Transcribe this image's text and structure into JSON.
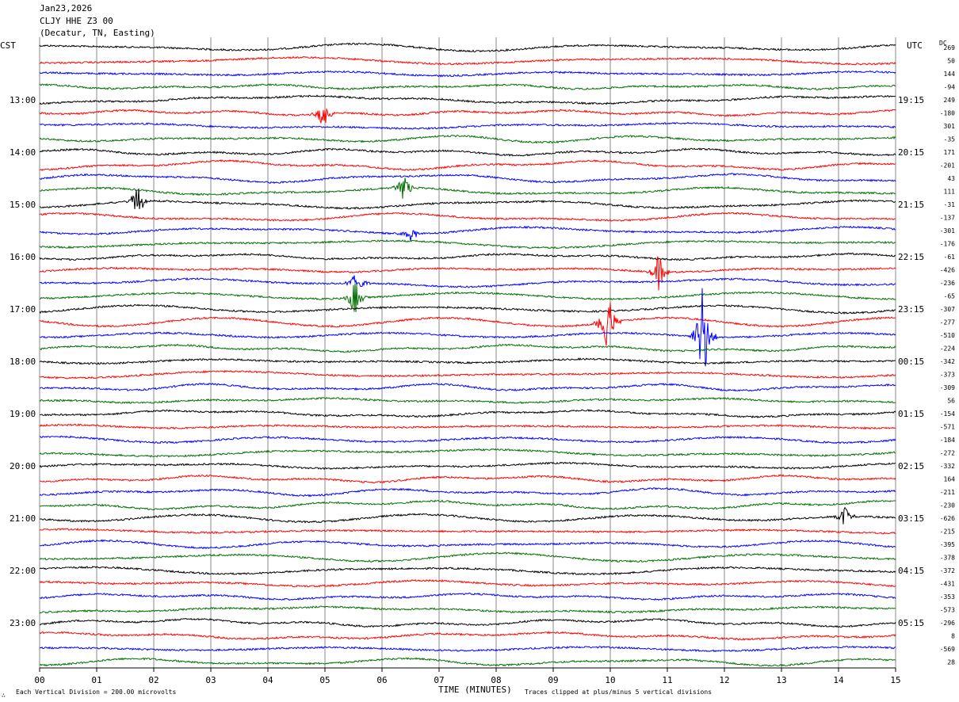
{
  "header": {
    "date": "Jan23,2026",
    "station": "CLJY HHE Z3 00",
    "location": "(Decatur, TN, Easting)"
  },
  "left_tz": "CST",
  "right_tz": "UTC",
  "dc_label": "DC",
  "footer": {
    "scale_note": "Each Vertical Division =  200.00 microvolts",
    "xlabel": "TIME (MINUTES)",
    "clip_note": "Traces clipped at plus/minus 5 vertical divisions",
    "corner_mark": "∴"
  },
  "colors": {
    "black": "#000000",
    "red": "#ff0000",
    "blue": "#0000ff",
    "green": "#007000",
    "grid": "#888888"
  },
  "chart_data": {
    "type": "line",
    "title": "CLJY HHE Z3 00",
    "xlabel": "TIME (MINUTES)",
    "xlim": [
      0,
      15
    ],
    "x_ticks": [
      "00",
      "01",
      "02",
      "03",
      "04",
      "05",
      "06",
      "07",
      "08",
      "09",
      "10",
      "11",
      "12",
      "13",
      "14",
      "15"
    ],
    "trace_color_cycle": [
      "black",
      "red",
      "blue",
      "green"
    ],
    "num_traces": 48,
    "left_time_labels": [
      {
        "trace": 4,
        "label": "13:00"
      },
      {
        "trace": 8,
        "label": "14:00"
      },
      {
        "trace": 12,
        "label": "15:00"
      },
      {
        "trace": 16,
        "label": "16:00"
      },
      {
        "trace": 20,
        "label": "17:00"
      },
      {
        "trace": 24,
        "label": "18:00"
      },
      {
        "trace": 28,
        "label": "19:00"
      },
      {
        "trace": 32,
        "label": "20:00"
      },
      {
        "trace": 36,
        "label": "21:00"
      },
      {
        "trace": 40,
        "label": "22:00"
      },
      {
        "trace": 44,
        "label": "23:00"
      }
    ],
    "right_time_labels": [
      {
        "trace": 4,
        "label": "19:15"
      },
      {
        "trace": 8,
        "label": "20:15"
      },
      {
        "trace": 12,
        "label": "21:15"
      },
      {
        "trace": 16,
        "label": "22:15"
      },
      {
        "trace": 20,
        "label": "23:15"
      },
      {
        "trace": 24,
        "label": "00:15"
      },
      {
        "trace": 28,
        "label": "01:15"
      },
      {
        "trace": 32,
        "label": "02:15"
      },
      {
        "trace": 36,
        "label": "03:15"
      },
      {
        "trace": 40,
        "label": "04:15"
      },
      {
        "trace": 44,
        "label": "05:15"
      }
    ],
    "dc_offsets": [
      "269",
      "50",
      "144",
      "-94",
      "249",
      "-180",
      "301",
      "-35",
      "171",
      "-201",
      "43",
      "111",
      "-31",
      "-137",
      "-301",
      "-176",
      "-61",
      "-426",
      "-236",
      "-65",
      "-307",
      "-277",
      "-510",
      "-224",
      "-342",
      "-373",
      "-309",
      "56",
      "-154",
      "-571",
      "-184",
      "-272",
      "-332",
      "164",
      "-211",
      "-230",
      "-626",
      "-215",
      "-395",
      "-378",
      "-372",
      "-431",
      "-353",
      "-573",
      "-296",
      "8",
      "-569",
      "28"
    ],
    "events": [
      {
        "trace": 11,
        "minute": 6.38,
        "amp": 1.6
      },
      {
        "trace": 12,
        "minute": 1.72,
        "amp": 1.6
      },
      {
        "trace": 17,
        "minute": 10.85,
        "amp": 1.6
      },
      {
        "trace": 18,
        "minute": 5.55,
        "amp": 1.4
      },
      {
        "trace": 19,
        "minute": 5.52,
        "amp": 1.6
      },
      {
        "trace": 21,
        "minute": 9.95,
        "amp": 3.2
      },
      {
        "trace": 22,
        "minute": 11.62,
        "amp": 5.0
      },
      {
        "trace": 5,
        "minute": 4.97,
        "amp": 1.4
      },
      {
        "trace": 14,
        "minute": 6.5,
        "amp": 0.9
      },
      {
        "trace": 36,
        "minute": 14.1,
        "amp": 1.0
      }
    ]
  }
}
